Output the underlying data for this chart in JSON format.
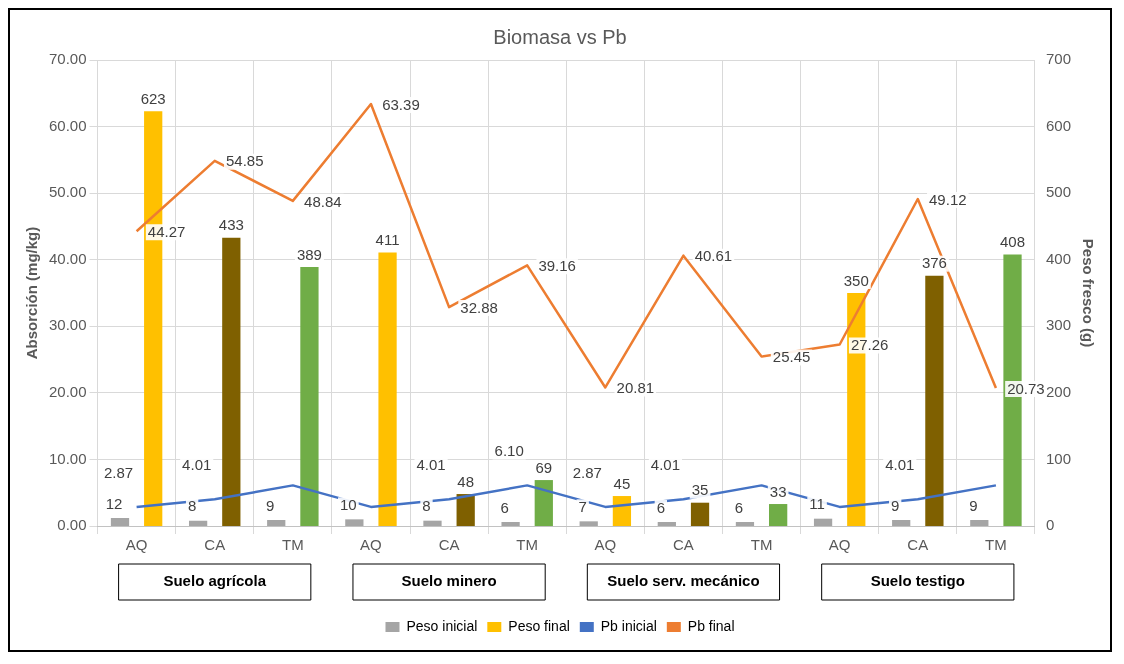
{
  "chart_data": {
    "type": "bar",
    "title": "Biomasa vs Pb",
    "ylabel": "Absorción (mg/kg)",
    "y2label": "Peso fresco (g)",
    "categories": [
      "AQ",
      "CA",
      "TM",
      "AQ",
      "CA",
      "TM",
      "AQ",
      "CA",
      "TM",
      "AQ",
      "CA",
      "TM"
    ],
    "annotations": [
      "Suelo agrícola",
      "Suelo minero",
      "Suelo serv. mecánico",
      "Suelo testigo"
    ],
    "series": [
      {
        "name": "Peso inicial",
        "axis": "y2",
        "color": "#a5a5a5",
        "values": [
          12,
          8,
          9,
          10,
          8,
          6,
          7,
          6,
          6,
          11,
          9,
          9
        ],
        "value_labels": [
          "12",
          "8",
          "9",
          "10",
          "8",
          "6",
          "7",
          "6",
          "6",
          "11",
          "9",
          "9"
        ]
      },
      {
        "name": "Peso final",
        "axis": "y2",
        "color": "#ffc000",
        "colors": [
          "#ffc000",
          "#7f6000",
          "#70ad47",
          "#ffc000",
          "#7f6000",
          "#70ad47",
          "#ffc000",
          "#7f6000",
          "#70ad47",
          "#ffc000",
          "#7f6000",
          "#70ad47"
        ],
        "values": [
          623,
          433,
          389,
          411,
          48,
          69,
          45,
          35,
          33,
          350,
          376,
          408
        ],
        "value_labels": [
          "623",
          "433",
          "389",
          "411",
          "48",
          "69",
          "45",
          "35",
          "33",
          "350",
          "376",
          "408"
        ]
      },
      {
        "name": "Pb inicial",
        "type": "line",
        "color": "#4472c4",
        "values": [
          2.87,
          4.01,
          6.1,
          2.87,
          4.01,
          6.1,
          2.87,
          4.01,
          6.1,
          2.87,
          4.01,
          6.1
        ],
        "value_labels": [
          "2.87",
          "4.01",
          null,
          null,
          "4.01",
          "6.10",
          "2.87",
          "4.01",
          null,
          null,
          "4.01",
          null
        ]
      },
      {
        "name": "Pb final",
        "type": "line",
        "color": "#ed7d31",
        "values": [
          44.27,
          54.85,
          48.84,
          63.39,
          32.88,
          39.16,
          20.81,
          40.61,
          25.45,
          27.26,
          49.12,
          20.73
        ],
        "value_labels": [
          "44.27",
          "54.85",
          "48.84",
          "63.39",
          "32.88",
          "39.16",
          "20.81",
          "40.61",
          "25.45",
          "27.26",
          "49.12",
          "20.73"
        ]
      }
    ],
    "ylim": [
      0,
      70
    ],
    "yticks": [
      {
        "value": 0,
        "label": "0.00"
      },
      {
        "value": 10,
        "label": "10.00"
      },
      {
        "value": 20,
        "label": "20.00"
      },
      {
        "value": 30,
        "label": "30.00"
      },
      {
        "value": 40,
        "label": "40.00"
      },
      {
        "value": 50,
        "label": "50.00"
      },
      {
        "value": 60,
        "label": "60.00"
      },
      {
        "value": 70,
        "label": "70.00"
      }
    ],
    "y2lim": [
      0,
      700
    ],
    "y2ticks": [
      0,
      100,
      200,
      300,
      400,
      500,
      600,
      700
    ],
    "grid": true,
    "legend": "bottom",
    "marker": "none",
    "line_style": "solid"
  }
}
